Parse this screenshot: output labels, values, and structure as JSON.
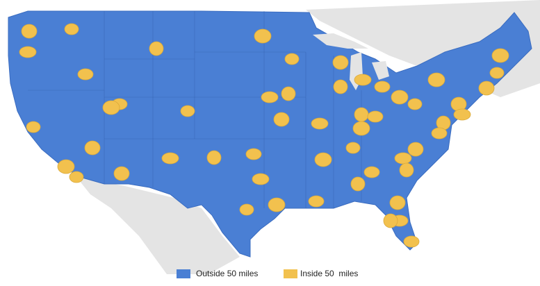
{
  "legend": {
    "items": [
      {
        "label": "Outside 50 miles",
        "color": "#4a7fd4"
      },
      {
        "label": "Inside 50  miles",
        "color": "#f2c14e"
      }
    ]
  }
}
